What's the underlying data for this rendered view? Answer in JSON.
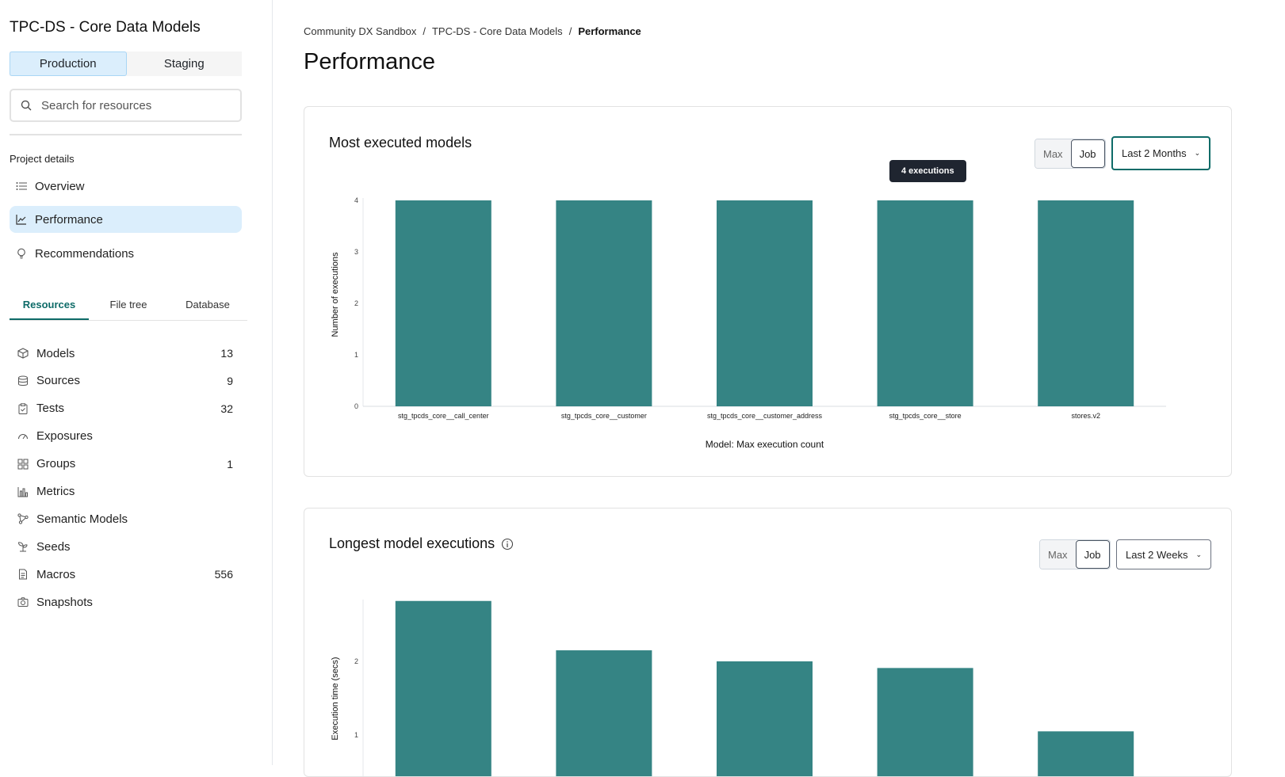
{
  "sidebar": {
    "project_title": "TPC-DS - Core Data Models",
    "environments": [
      "Production",
      "Staging"
    ],
    "search_placeholder": "Search for resources",
    "section_label": "Project details",
    "nav": [
      "Overview",
      "Performance",
      "Recommendations"
    ],
    "tabs": [
      "Resources",
      "File tree",
      "Database"
    ],
    "resources": [
      {
        "label": "Models",
        "count": "13",
        "icon": "cube-icon"
      },
      {
        "label": "Sources",
        "count": "9",
        "icon": "database-icon"
      },
      {
        "label": "Tests",
        "count": "32",
        "icon": "clipboard-icon"
      },
      {
        "label": "Exposures",
        "count": "",
        "icon": "gauge-icon"
      },
      {
        "label": "Groups",
        "count": "1",
        "icon": "grid-icon"
      },
      {
        "label": "Metrics",
        "count": "",
        "icon": "bar-chart-icon"
      },
      {
        "label": "Semantic Models",
        "count": "",
        "icon": "nodes-icon"
      },
      {
        "label": "Seeds",
        "count": "",
        "icon": "sprout-icon"
      },
      {
        "label": "Macros",
        "count": "556",
        "icon": "file-icon"
      },
      {
        "label": "Snapshots",
        "count": "",
        "icon": "camera-icon"
      }
    ]
  },
  "breadcrumb": [
    "Community DX Sandbox",
    "TPC-DS - Core Data Models",
    "Performance"
  ],
  "page_title": "Performance",
  "colors": {
    "bar": "#358484",
    "accent": "#0e6b68",
    "active_bg": "#dbeefc"
  },
  "cards": [
    {
      "title": "Most executed models",
      "toggle": [
        "Max",
        "Job"
      ],
      "range": "Last 2 Months",
      "tooltip": "4 executions"
    },
    {
      "title": "Longest model executions",
      "toggle": [
        "Max",
        "Job"
      ],
      "range": "Last 2 Weeks"
    }
  ],
  "chart_data": [
    {
      "type": "bar",
      "categories": [
        "stg_tpcds_core__call_center",
        "stg_tpcds_core__customer",
        "stg_tpcds_core__customer_address",
        "stg_tpcds_core__store",
        "stores.v2"
      ],
      "values": [
        4,
        4,
        4,
        4,
        4
      ],
      "xlabel": "Model: Max execution count",
      "ylabel": "Number of executions",
      "ylim": [
        0,
        4
      ],
      "yticks": [
        0,
        1,
        2,
        3,
        4
      ],
      "grid": false
    },
    {
      "type": "bar",
      "values": [
        2.82,
        2.15,
        2.0,
        1.91,
        1.05
      ],
      "ylabel": "Execution time (secs)",
      "yticks": [
        1,
        2
      ],
      "grid": false
    }
  ]
}
